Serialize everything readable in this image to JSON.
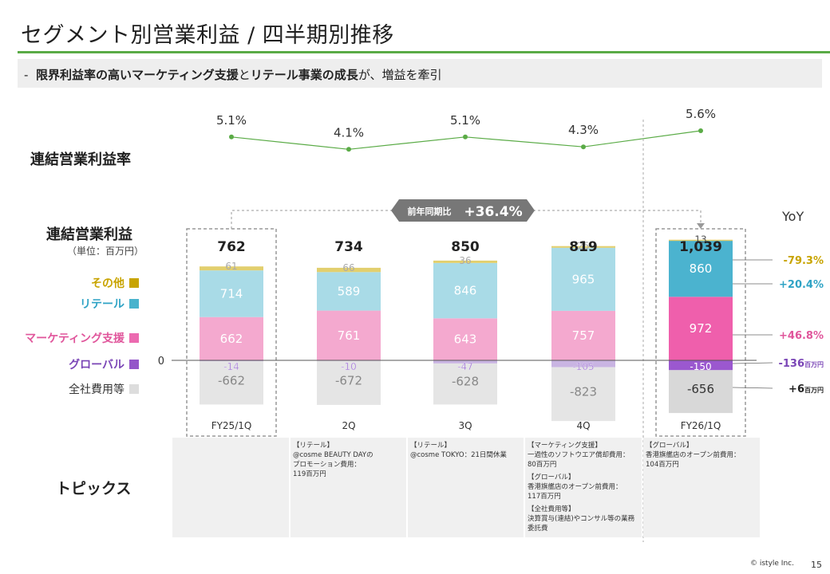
{
  "header": {
    "title": "セグメント別営業利益 / 四半期別推移",
    "subtitle_prefix": "-",
    "subtitle_parts": [
      {
        "text": "限界利益率の高いマーケティング支援",
        "bold": true
      },
      {
        "text": "と",
        "bold": false
      },
      {
        "text": "リテール事業の成長",
        "bold": true
      },
      {
        "text": "が、増益を牽引",
        "bold": false
      }
    ]
  },
  "labels": {
    "margin_row": "連結営業利益率",
    "profit_row": "連結営業利益",
    "unit": "（単位：百万円）",
    "topics_row": "トピックス",
    "yoy": "YoY",
    "zero": "0",
    "yoy_callout_label": "前年同期比",
    "yoy_callout_value": "+36.4%"
  },
  "legend": [
    {
      "label": "その他",
      "color": "#c8a400",
      "swatch": "#c8a400"
    },
    {
      "label": "リテール",
      "color": "#2fa3c5",
      "swatch": "#48b3cd"
    },
    {
      "label": "マーケティング支援",
      "color": "#e0559b",
      "swatch": "#ec6ab0"
    },
    {
      "label": "グローバル",
      "color": "#7a45b6",
      "swatch": "#9456c9"
    },
    {
      "label": "全社費用等",
      "color": "#333333",
      "swatch": "#dddddd"
    }
  ],
  "chart_data": {
    "type": "bar",
    "stacked": true,
    "title": "セグメント別営業利益 / 四半期別推移",
    "categories": [
      "FY25/1Q",
      "2Q",
      "3Q",
      "4Q",
      "FY26/1Q"
    ],
    "totals": [
      762,
      734,
      850,
      819,
      1039
    ],
    "total_labels": [
      "762",
      "734",
      "850",
      "819",
      "1,039"
    ],
    "series": [
      {
        "name": "全社費用等",
        "values": [
          -662,
          -672,
          -628,
          -823,
          -656
        ],
        "labels": [
          "-662",
          "-672",
          "-628",
          "-823",
          "-656"
        ]
      },
      {
        "name": "グローバル",
        "values": [
          -14,
          -10,
          -47,
          -105,
          -150
        ],
        "labels": [
          "-14",
          "-10",
          "-47",
          "-105",
          "-150"
        ]
      },
      {
        "name": "マーケティング支援",
        "values": [
          662,
          761,
          643,
          757,
          972
        ],
        "labels": [
          "662",
          "761",
          "643",
          "757",
          "972"
        ]
      },
      {
        "name": "リテール",
        "values": [
          714,
          589,
          846,
          965,
          860
        ],
        "labels": [
          "714",
          "589",
          "846",
          "965",
          "860"
        ]
      },
      {
        "name": "その他",
        "values": [
          61,
          66,
          36,
          25,
          13
        ],
        "labels": [
          "61",
          "66",
          "36",
          "25",
          "13"
        ]
      }
    ],
    "operating_margin": {
      "name": "連結営業利益率",
      "type": "line",
      "values": [
        5.1,
        4.1,
        5.1,
        4.3,
        5.6
      ],
      "labels": [
        "5.1%",
        "4.1%",
        "5.1%",
        "4.3%",
        "5.6%"
      ]
    },
    "yoy": [
      {
        "segment": "その他",
        "label": "-79.3%",
        "unit": ""
      },
      {
        "segment": "リテール",
        "label": "+20.4%",
        "unit": ""
      },
      {
        "segment": "マーケティング支援",
        "label": "+46.8%",
        "unit": ""
      },
      {
        "segment": "グローバル",
        "label": "-136",
        "unit": "百万円"
      },
      {
        "segment": "全社費用等",
        "label": "+6",
        "unit": "百万円"
      }
    ]
  },
  "topics": [
    {
      "lines": []
    },
    {
      "lines": [
        "【リテール】",
        "@cosme BEAUTY DAYの",
        "プロモーション費用：",
        "119百万円"
      ]
    },
    {
      "lines": [
        "【リテール】",
        "@cosme TOKYO：21日間休業"
      ]
    },
    {
      "lines": [
        "【マーケティング支援】",
        "一過性のソフトウエア償却費用：",
        "80百万円",
        "【グローバル】",
        "香港旗艦店のオープン前費用：",
        "117百万円",
        "【全社費用等】",
        "決算賞与(連結)やコンサル等の業務",
        "委託費"
      ],
      "group_starts": [
        3,
        6
      ]
    },
    {
      "lines": [
        "【グローバル】",
        "香港旗艦店のオープン前費用：",
        "104百万円"
      ]
    }
  ],
  "footer": {
    "copyright": "© istyle Inc.",
    "page": "15"
  },
  "colors": {
    "accent_green": "#5aab46",
    "other": "#e2cf6e",
    "retail": "#a9dbe7",
    "retail_highlight": "#4bb3cf",
    "marketing": "#f4a9cf",
    "marketing_highlight": "#ef5fac",
    "global": "#c9b4e2",
    "global_highlight": "#9b58cf",
    "corporate": "#e5e5e5",
    "corporate_highlight": "#d8d8d8"
  }
}
